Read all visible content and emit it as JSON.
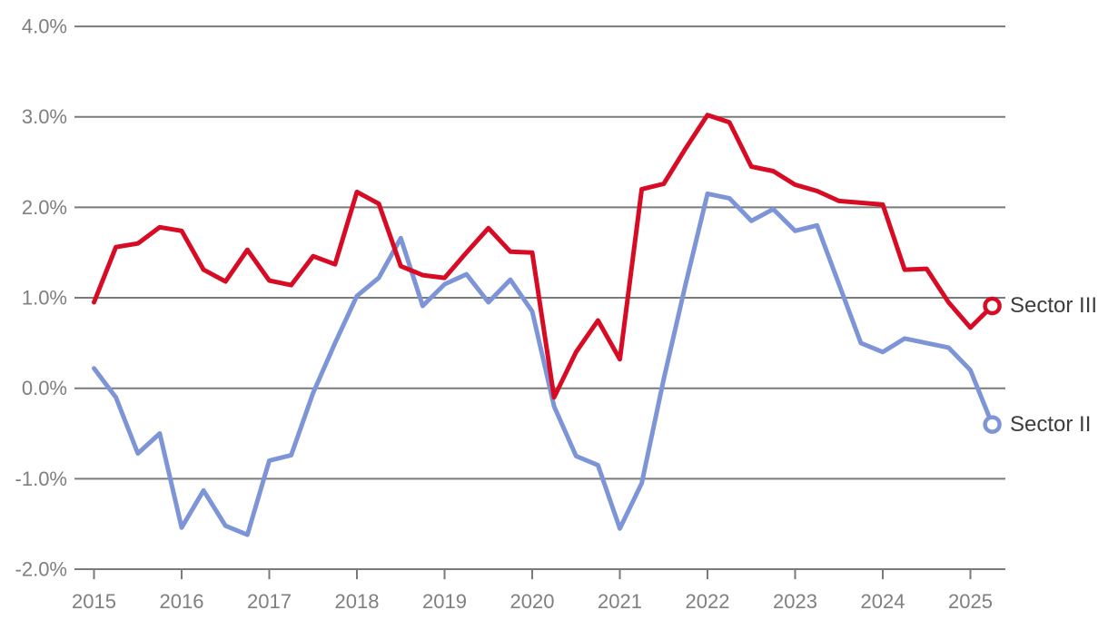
{
  "chart_data": {
    "type": "line",
    "title": "",
    "grid": true,
    "legend_position": "end-of-line-labels-right",
    "x_axis": {
      "tick_labels": [
        "2015",
        "2016",
        "2017",
        "2018",
        "2019",
        "2020",
        "2021",
        "2022",
        "2023",
        "2024",
        "2025"
      ]
    },
    "y_axis": {
      "unit": "%",
      "range": [
        -2.0,
        4.0
      ],
      "tick_values": [
        4,
        3,
        2,
        1,
        0,
        -1,
        -2
      ],
      "tick_labels": [
        "4.0%",
        "3.0%",
        "2.0%",
        "1.0%",
        "0.0%",
        "-1.0%",
        "-2.0%"
      ]
    },
    "periods": [
      "2015 Q1",
      "2015 Q2",
      "2015 Q3",
      "2015 Q4",
      "2016 Q1",
      "2016 Q2",
      "2016 Q3",
      "2016 Q4",
      "2017 Q1",
      "2017 Q2",
      "2017 Q3",
      "2017 Q4",
      "2018 Q1",
      "2018 Q2",
      "2018 Q3",
      "2018 Q4",
      "2019 Q1",
      "2019 Q2",
      "2019 Q3",
      "2019 Q4",
      "2020 Q1",
      "2020 Q2",
      "2020 Q3",
      "2020 Q4",
      "2021 Q1",
      "2021 Q2",
      "2021 Q3",
      "2021 Q4",
      "2022 Q1",
      "2022 Q2",
      "2022 Q3",
      "2022 Q4",
      "2023 Q1",
      "2023 Q2",
      "2023 Q3",
      "2023 Q4",
      "2024 Q1",
      "2024 Q2",
      "2024 Q3",
      "2024 Q4",
      "2025 Q1",
      "2025 Q2"
    ],
    "series": [
      {
        "name": "Sector II",
        "color": "#7d95d6",
        "marker": "open-circle-at-end",
        "values": [
          0.22,
          -0.1,
          -0.72,
          -0.5,
          -1.54,
          -1.13,
          -1.52,
          -1.62,
          -0.8,
          -0.74,
          -0.05,
          0.5,
          1.02,
          1.22,
          1.66,
          0.91,
          1.15,
          1.26,
          0.95,
          1.2,
          0.85,
          -0.2,
          -0.75,
          -0.85,
          -1.55,
          -1.05,
          0.1,
          1.15,
          2.15,
          2.1,
          1.85,
          1.98,
          1.74,
          1.8,
          1.15,
          0.5,
          0.4,
          0.55,
          0.5,
          0.45,
          0.2,
          -0.4
        ]
      },
      {
        "name": "Sector III",
        "color": "#d70b23",
        "marker": "open-circle-at-end",
        "values": [
          0.95,
          1.56,
          1.6,
          1.78,
          1.74,
          1.31,
          1.18,
          1.53,
          1.19,
          1.14,
          1.46,
          1.37,
          2.17,
          2.04,
          1.35,
          1.25,
          1.22,
          1.5,
          1.77,
          1.51,
          1.5,
          -0.1,
          0.4,
          0.75,
          0.32,
          2.2,
          2.26,
          2.65,
          3.02,
          2.94,
          2.45,
          2.4,
          2.25,
          2.18,
          2.07,
          2.05,
          2.03,
          1.31,
          1.32,
          0.95,
          0.67,
          0.91
        ]
      }
    ],
    "style": {
      "grid_color": "#7a7a7a",
      "axis_color": "#7a7a7a",
      "tick_label_color": "#7f7f7f",
      "end_label_color": "#3d3d3d",
      "background": "#ffffff"
    }
  }
}
